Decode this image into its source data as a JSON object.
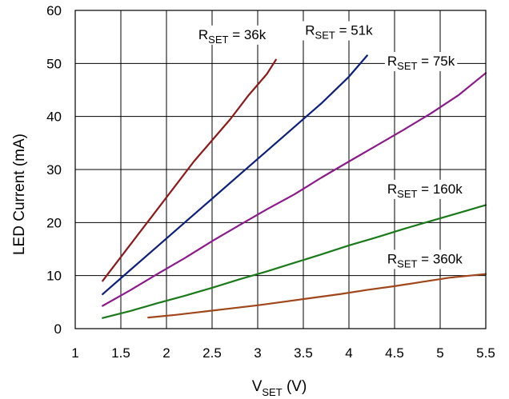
{
  "chart_data": {
    "type": "line",
    "title": "",
    "xlabel": {
      "main": "V",
      "sub": "SET",
      "unit": " (V)"
    },
    "ylabel": "LED Current (mA)",
    "xlim": [
      1,
      5.5
    ],
    "ylim": [
      0,
      60
    ],
    "x_ticks": [
      "1",
      "1.5",
      "2",
      "2.5",
      "3",
      "3.5",
      "4",
      "4.5",
      "5",
      "5.5"
    ],
    "y_ticks": [
      "0",
      "10",
      "20",
      "30",
      "40",
      "50",
      "60"
    ],
    "grid": true,
    "series": [
      {
        "key": "rset-36k",
        "label_main": "R",
        "label_sub": "SET",
        "label_rest": " = 36k",
        "color": "#8b1a1a",
        "x": [
          1.3,
          1.5,
          1.7,
          1.9,
          2.1,
          2.3,
          2.5,
          2.7,
          2.9,
          3.1,
          3.2
        ],
        "y": [
          9.0,
          13.5,
          18.0,
          22.5,
          27.0,
          31.5,
          35.5,
          39.5,
          44.0,
          48.0,
          50.7
        ]
      },
      {
        "key": "rset-51k",
        "label_main": "R",
        "label_sub": "SET",
        "label_rest": " = 51k",
        "color": "#0d1f7a",
        "x": [
          1.3,
          1.6,
          1.9,
          2.2,
          2.5,
          2.8,
          3.1,
          3.4,
          3.7,
          4.0,
          4.2
        ],
        "y": [
          6.5,
          11.0,
          15.5,
          20.0,
          24.5,
          29.0,
          33.5,
          38.0,
          42.5,
          47.5,
          51.5
        ]
      },
      {
        "key": "rset-75k",
        "label_main": "R",
        "label_sub": "SET",
        "label_rest": " = 75k",
        "color": "#8b1a8b",
        "x": [
          1.3,
          1.6,
          1.9,
          2.2,
          2.5,
          2.8,
          3.1,
          3.4,
          3.7,
          4.0,
          4.3,
          4.6,
          4.9,
          5.2,
          5.5
        ],
        "y": [
          4.3,
          7.2,
          10.3,
          13.3,
          16.5,
          19.5,
          22.5,
          25.3,
          28.5,
          31.5,
          34.5,
          37.5,
          40.6,
          44.0,
          48.2
        ]
      },
      {
        "key": "rset-160k",
        "label_main": "R",
        "label_sub": "SET",
        "label_rest": " = 160k",
        "color": "#1a7a1a",
        "x": [
          1.3,
          1.6,
          1.9,
          2.2,
          2.5,
          2.8,
          3.1,
          3.4,
          3.7,
          4.0,
          4.3,
          4.6,
          4.9,
          5.2,
          5.5
        ],
        "y": [
          2.0,
          3.3,
          4.8,
          6.2,
          7.7,
          9.3,
          10.8,
          12.4,
          14.0,
          15.7,
          17.2,
          18.8,
          20.3,
          21.8,
          23.3
        ]
      },
      {
        "key": "rset-360k",
        "label_main": "R",
        "label_sub": "SET",
        "label_rest": " = 360k",
        "color": "#a0461a",
        "x": [
          1.8,
          2.1,
          2.4,
          2.7,
          3.0,
          3.3,
          3.6,
          3.9,
          4.2,
          4.5,
          4.8,
          5.1,
          5.5
        ],
        "y": [
          2.1,
          2.6,
          3.2,
          3.8,
          4.4,
          5.1,
          5.8,
          6.5,
          7.3,
          8.0,
          8.8,
          9.6,
          10.3
        ]
      }
    ]
  }
}
